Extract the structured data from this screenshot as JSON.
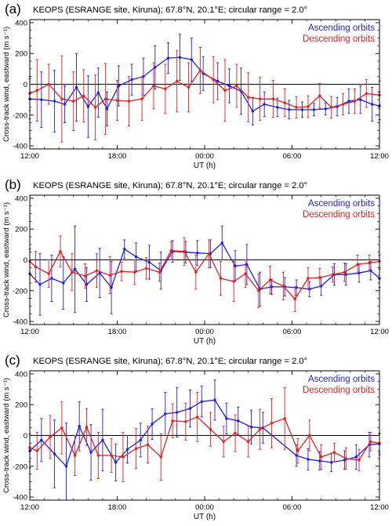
{
  "chart_data": [
    {
      "type": "line",
      "panel_label": "(a)",
      "title": "KEOPS (ESRANGE site, Kiruna); 67.8°N, 20.1°E; circular range = 2.0°",
      "xlabel": "UT (h)",
      "ylabel": "Cross-track wind, eastward (m s⁻¹)",
      "xlim": [
        12,
        36
      ],
      "ylim": [
        -420,
        420
      ],
      "xticks": [
        12,
        18,
        24,
        30,
        36
      ],
      "xtick_labels": [
        "12:00",
        "18:00",
        "00:00",
        "06:00",
        "12:00"
      ],
      "yticks": [
        -400,
        -200,
        0,
        200,
        400
      ],
      "ytick_labels": [
        "-400",
        "-200",
        "0",
        "200",
        "400"
      ],
      "legend_position": "top-right",
      "colors": {
        "Ascending orbits": "#1f1fe6",
        "Descending orbits": "#e61f1f"
      },
      "series": [
        {
          "name": "Ascending orbits",
          "x": [
            12.0,
            12.8,
            13.7,
            14.4,
            15.2,
            16.0,
            16.7,
            17.3,
            18.1,
            19.0,
            19.8,
            20.6,
            21.5,
            22.3,
            23.1,
            23.9,
            24.9,
            25.7,
            26.5,
            27.3,
            28.1,
            29.0,
            29.8,
            30.7,
            31.5,
            32.3,
            33.1,
            33.9,
            34.7,
            35.5,
            36.0
          ],
          "y": [
            -95,
            -100,
            -110,
            -130,
            -20,
            -145,
            -55,
            -160,
            -10,
            30,
            50,
            110,
            170,
            175,
            160,
            70,
            20,
            -10,
            -45,
            -175,
            -130,
            -150,
            -165,
            -165,
            -165,
            -160,
            -145,
            -110,
            -100,
            -130,
            -140
          ],
          "err": [
            130,
            180,
            200,
            120,
            220,
            200,
            160,
            110,
            130,
            100,
            120,
            140,
            100,
            150,
            140,
            110,
            120,
            110,
            150,
            90,
            80,
            60,
            60,
            50,
            40,
            40,
            60,
            80,
            90,
            110,
            90
          ]
        },
        {
          "name": "Descending orbits",
          "x": [
            12.0,
            12.5,
            13.3,
            14.2,
            15.0,
            15.7,
            16.5,
            17.2,
            18.0,
            18.8,
            19.7,
            20.5,
            21.3,
            22.1,
            22.9,
            23.7,
            24.6,
            25.4,
            26.2,
            27.0,
            27.8,
            28.7,
            29.5,
            30.3,
            31.1,
            31.9,
            32.7,
            33.5,
            34.3,
            35.1,
            36.0
          ],
          "y": [
            -60,
            -40,
            0,
            -95,
            -110,
            -75,
            -150,
            -95,
            -105,
            -110,
            -95,
            -10,
            -30,
            20,
            -20,
            90,
            30,
            -40,
            -10,
            -85,
            -95,
            -95,
            -120,
            -150,
            -145,
            -75,
            -150,
            -130,
            -110,
            -60,
            -70
          ],
          "err": [
            110,
            200,
            130,
            280,
            190,
            170,
            210,
            230,
            130,
            160,
            140,
            150,
            160,
            200,
            160,
            150,
            150,
            200,
            140,
            160,
            140,
            120,
            90,
            70,
            70,
            80,
            70,
            70,
            80,
            90,
            90
          ]
        }
      ]
    },
    {
      "type": "line",
      "panel_label": "(b)",
      "title": "KEOPS (ESRANGE site, Kiruna); 67.8°N, 20.1°E; circular range = 2.0°",
      "xlabel": "UT (h)",
      "ylabel": "Cross-track wind, eastward (m s⁻¹)",
      "xlim": [
        12,
        36
      ],
      "ylim": [
        -420,
        420
      ],
      "xticks": [
        12,
        18,
        24,
        30,
        36
      ],
      "xtick_labels": [
        "12:00",
        "18:00",
        "00:00",
        "06:00",
        "12:00"
      ],
      "yticks": [
        -400,
        -200,
        0,
        200,
        400
      ],
      "ytick_labels": [
        "-400",
        "-200",
        "0",
        "200",
        "400"
      ],
      "legend_position": "top-right",
      "colors": {
        "Ascending orbits": "#1f1fe6",
        "Descending orbits": "#e61f1f"
      },
      "series": [
        {
          "name": "Ascending orbits",
          "x": [
            12.0,
            12.7,
            13.5,
            14.3,
            15.1,
            15.9,
            16.8,
            17.6,
            18.5,
            19.3,
            20.2,
            21.0,
            21.8,
            22.7,
            23.5,
            24.4,
            25.2,
            26.1,
            26.9,
            27.8,
            28.6,
            29.5,
            30.3,
            31.2,
            32.0,
            32.9,
            33.7,
            34.6,
            35.4,
            36.0
          ],
          "y": [
            -90,
            -160,
            -120,
            -150,
            -60,
            -160,
            -85,
            -180,
            70,
            20,
            -15,
            -70,
            55,
            50,
            45,
            40,
            110,
            -40,
            -30,
            -190,
            -175,
            -175,
            -180,
            -190,
            -170,
            -95,
            -95,
            -85,
            -70,
            -120
          ],
          "err": [
            160,
            200,
            150,
            170,
            280,
            110,
            160,
            170,
            60,
            90,
            110,
            120,
            70,
            70,
            80,
            90,
            110,
            100,
            130,
            110,
            50,
            60,
            50,
            50,
            60,
            70,
            70,
            60,
            60,
            60
          ]
        },
        {
          "name": "Descending orbits",
          "x": [
            12.0,
            12.4,
            13.3,
            14.1,
            14.9,
            15.8,
            16.6,
            17.5,
            18.3,
            19.2,
            20.0,
            20.9,
            21.7,
            22.6,
            23.4,
            24.3,
            25.1,
            26.0,
            26.8,
            27.7,
            28.5,
            29.4,
            30.2,
            31.1,
            31.9,
            32.8,
            33.6,
            34.5,
            35.3,
            36.0
          ],
          "y": [
            -10,
            -45,
            -90,
            55,
            -80,
            -105,
            -70,
            -100,
            -75,
            -80,
            -55,
            -80,
            60,
            55,
            -80,
            40,
            -120,
            -140,
            -90,
            -200,
            -130,
            -170,
            -255,
            -120,
            -115,
            -95,
            -80,
            -30,
            -20,
            -10
          ],
          "err": [
            80,
            100,
            90,
            100,
            120,
            80,
            110,
            120,
            60,
            80,
            70,
            60,
            60,
            90,
            110,
            90,
            110,
            130,
            90,
            110,
            90,
            90,
            80,
            70,
            60,
            50,
            60,
            60,
            50,
            40
          ]
        }
      ]
    },
    {
      "type": "line",
      "panel_label": "(c)",
      "title": "KEOPS (ESRANGE site, Kiruna); 67.8°N, 20.1°E; circular range = 2.0°",
      "xlabel": "UT (h)",
      "ylabel": "Cross-track wind, eastward (m s⁻¹)",
      "xlim": [
        12,
        36
      ],
      "ylim": [
        -420,
        420
      ],
      "xticks": [
        12,
        18,
        24,
        30,
        36
      ],
      "xtick_labels": [
        "12:00",
        "18:00",
        "00:00",
        "06:00",
        "12:00"
      ],
      "yticks": [
        -400,
        -200,
        0,
        200,
        400
      ],
      "ytick_labels": [
        "-400",
        "-200",
        "0",
        "200",
        "400"
      ],
      "legend_position": "top-right",
      "colors": {
        "Ascending orbits": "#1f1fe6",
        "Descending orbits": "#e61f1f"
      },
      "series": [
        {
          "name": "Ascending orbits",
          "x": [
            12.0,
            12.8,
            13.7,
            14.5,
            15.4,
            16.2,
            17.0,
            17.9,
            18.7,
            19.6,
            20.4,
            21.3,
            22.1,
            23.0,
            23.8,
            24.7,
            25.5,
            26.3,
            27.2,
            28.0,
            30.3,
            31.1,
            31.9,
            32.7,
            33.6,
            34.4,
            35.3,
            36.0
          ],
          "y": [
            -100,
            -30,
            -120,
            -200,
            60,
            -110,
            -30,
            -175,
            -90,
            -30,
            75,
            140,
            150,
            175,
            220,
            230,
            110,
            95,
            55,
            50,
            -130,
            -155,
            -165,
            -175,
            -160,
            -140,
            -60,
            -55
          ],
          "err": [
            110,
            140,
            220,
            280,
            160,
            180,
            200,
            120,
            90,
            110,
            100,
            140,
            160,
            120,
            100,
            130,
            100,
            90,
            110,
            100,
            70,
            70,
            60,
            60,
            60,
            80,
            80,
            70
          ]
        },
        {
          "name": "Descending orbits",
          "x": [
            12.0,
            12.5,
            13.4,
            14.2,
            15.1,
            15.9,
            16.7,
            17.6,
            18.4,
            19.3,
            20.1,
            21.0,
            21.8,
            22.7,
            23.5,
            24.4,
            25.3,
            26.1,
            27.0,
            27.8,
            28.6,
            29.5,
            30.4,
            31.2,
            32.0,
            32.9,
            33.7,
            34.6,
            35.4,
            36.0
          ],
          "y": [
            -80,
            -100,
            -10,
            50,
            -130,
            55,
            -130,
            -130,
            -140,
            -85,
            -60,
            -140,
            95,
            90,
            120,
            40,
            -40,
            15,
            -40,
            40,
            80,
            110,
            -100,
            0,
            -140,
            -110,
            -150,
            -160,
            -40,
            -50
          ],
          "err": [
            90,
            120,
            140,
            170,
            130,
            120,
            150,
            110,
            160,
            130,
            120,
            150,
            110,
            120,
            160,
            110,
            100,
            120,
            100,
            130,
            160,
            200,
            80,
            100,
            80,
            60,
            70,
            70,
            60,
            60
          ]
        }
      ]
    }
  ]
}
